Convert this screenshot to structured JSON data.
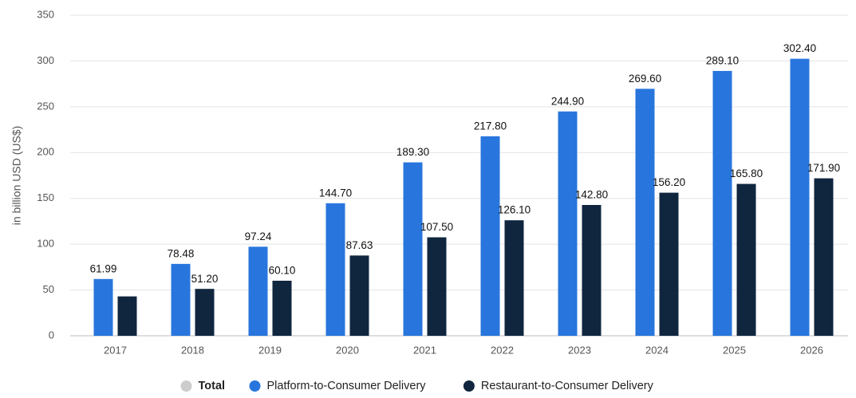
{
  "chart_data": {
    "type": "bar",
    "y_label": "in billion USD (US$)",
    "categories": [
      "2017",
      "2018",
      "2019",
      "2020",
      "2021",
      "2022",
      "2023",
      "2024",
      "2025",
      "2026"
    ],
    "series": [
      {
        "name": "Total",
        "color": "#cccccc",
        "hidden": true,
        "values": [
          null,
          null,
          null,
          null,
          null,
          null,
          null,
          null,
          null,
          null
        ]
      },
      {
        "name": "Platform-to-Consumer Delivery",
        "color": "#2876dd",
        "values": [
          61.99,
          78.48,
          97.24,
          144.7,
          189.3,
          217.8,
          244.9,
          269.6,
          289.1,
          302.4
        ],
        "value_labels": [
          "61.99",
          "78.48",
          "97.24",
          "144.70",
          "189.30",
          "217.80",
          "244.90",
          "269.60",
          "289.10",
          "302.40"
        ]
      },
      {
        "name": "Restaurant-to-Consumer Delivery",
        "color": "#10263f",
        "values": [
          43,
          51.2,
          60.1,
          87.63,
          107.5,
          126.1,
          142.8,
          156.2,
          165.8,
          171.9
        ],
        "value_labels": [
          null,
          "51.20",
          "60.10",
          "87.63",
          "107.50",
          "126.10",
          "142.80",
          "156.20",
          "165.80",
          "171.90"
        ]
      }
    ],
    "ylim": [
      0,
      350
    ],
    "yticks": [
      0,
      50,
      100,
      150,
      200,
      250,
      300,
      350
    ],
    "grid": true
  }
}
